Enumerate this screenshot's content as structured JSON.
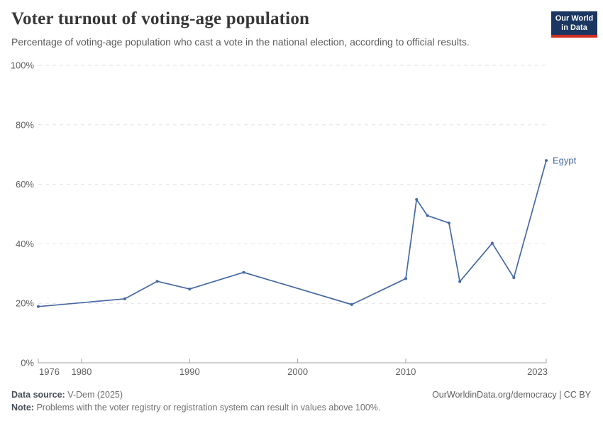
{
  "header": {
    "title": "Voter turnout of voting-age population",
    "subtitle": "Percentage of voting-age population who cast a vote in the national election, according to official results.",
    "logo": {
      "line1": "Our World",
      "line2": "in Data",
      "bg_color": "#1b3660",
      "accent_color": "#cf2e23"
    }
  },
  "chart_data": {
    "type": "line",
    "title": "Voter turnout of voting-age population",
    "xlabel": "",
    "ylabel": "",
    "xlim": [
      1976,
      2023
    ],
    "ylim": [
      0,
      100
    ],
    "xticks": [
      1976,
      1980,
      1990,
      2000,
      2010,
      2023
    ],
    "yticks": [
      0,
      20,
      40,
      60,
      80,
      100
    ],
    "ytick_suffix": "%",
    "grid": "horizontal dashed gridlines on",
    "legend": "inline label at end of line",
    "gridline_color": "#e2e2e2",
    "axis_color": "#a3a3a3",
    "tick_label_color": "#5f5f5f",
    "series": [
      {
        "name": "Egypt",
        "color": "#4669a3",
        "x": [
          1976,
          1984,
          1987,
          1990,
          1995,
          2005,
          2010,
          2011,
          2012,
          2014,
          2015,
          2018,
          2020,
          2023
        ],
        "values": [
          18.9,
          21.5,
          27.4,
          24.8,
          30.4,
          19.6,
          28.3,
          54.9,
          49.5,
          47.0,
          27.3,
          40.2,
          28.6,
          68.0
        ]
      }
    ]
  },
  "footer": {
    "datasource_label": "Data source:",
    "datasource_value": "V-Dem (2025)",
    "link": "OurWorldinData.org/democracy | CC BY",
    "note_label": "Note:",
    "note_text": "Problems with the voter registry or registration system can result in values above 100%."
  }
}
